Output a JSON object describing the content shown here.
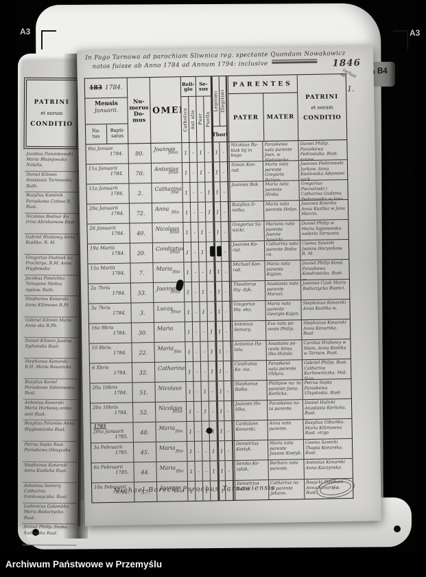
{
  "frame": {
    "mark_top_left": "A3",
    "mark_top_right": "A3",
    "mark_side_right": "B4",
    "footer": "Archiwum Państwowe w Przemyślu"
  },
  "colors": {
    "film": "#e9e9e6",
    "paper": "#d4d3cf",
    "ink": "#35322b",
    "print": "#17140e"
  },
  "left_page": {
    "header_l1": "PATRINI",
    "header_l2": "et eorum",
    "header_l3": "CONDITIO",
    "entries": [
      "Jacobus Dziombowski Maria Błażejowska Natelis.",
      "Daniel Kilimin Anastasia Tarnowska Ruth.",
      "Bazylius Kotelnik Paraskewa Cotiwa R. Rust.",
      "Nicolaus Bodnar Ko Irina Abrahamow Rust.",
      "Gabriel Hrabowy Anna Kozlika. R. M.",
      "Gregorius Dudziak ko Prochirya. R.M. Anna Węgłowska",
      "Jacobus Potelchka Tamojana Stolica nyslaw. Ruth.",
      "Stephanus Konarski Anna Kilimowa R.Pf.",
      "Gabriel Kilimin Maria Anna ska R.Ph.",
      "Daniel Kilimin Justina Sydomska Rust.",
      "Stephanus Konarski R.H. Maria Basoricka",
      "Bazylius Koriel Paraskewa Sidorowska Rust.",
      "Antonius Konarski Maria Horbowy ambo soni Rust.",
      "Bazylius Palumbo Anna Węgłowianka Rust.",
      "Petrus Supta Rust. Paraskewa Olesyczka",
      "Stephanus Konarski Anna Kozlicka Rust.",
      "Antonius Semary Catharina Irankowyczka. Rust.",
      "Ludovicus Golambko Maria Badurzycka. Rust.",
      "Daniel Philip. Fenka Sadowska Rust."
    ]
  },
  "page": {
    "title_line1": "In Pago Tarnawa ad parochiam Sliwnica reg. spectante Quondam Nowakowicz",
    "title_line2": "natos fuisse ab Anno 1784 ad Annum 1794: inclusive",
    "year_note": "1846",
    "margin_note": "inclusi\nve.",
    "page_number": "1.",
    "signature": "Michael Borecki Parochus Tarnawiensis.",
    "stamp_text": "· 5 0 ·",
    "header": {
      "year_printed": "183",
      "year_hand": "1784.",
      "mensis": "Mensis",
      "mensis_hand": "Januarii.",
      "natus": "Na-\ntus",
      "baptisatus": "Bapti-\nsatus",
      "numerus": "Nu-\nmerus\nDo-\nmus",
      "nomen": "NOMEN",
      "religio": "Reli-\ngio",
      "catholica": "Catholica",
      "aut_alia": "Aut alia",
      "sexus": "Se-\nxus",
      "puer": "Puer",
      "puella": "Puella",
      "legitimi": "Legitimi",
      "illegitimi": "Illegitimi",
      "thori": "Thori",
      "parentes": "PARENTES",
      "pater": "PATER",
      "mater": "MATER",
      "patrini_l1": "PATRINI",
      "patrini_l2": "et eorum",
      "patrini_l3": "CONDITIO"
    },
    "rows": [
      {
        "date": "6ta Januar.",
        "year": "1784.",
        "domus": "80.",
        "name": "Joannes",
        "suffix": "filius",
        "marks": [
          "1",
          "-",
          "1",
          "-",
          "1",
          "-"
        ],
        "pater": "Nicolaus Ba- biak kij in bago",
        "mater": "Paraskewa nata parente Joan. w Nielwiecka",
        "patrini": "Daniel Philip. Paraskewa Fedrosiuka. Rust. sanow"
      },
      {
        "date": "11a Januarii",
        "year": "1784.",
        "domus": "70.",
        "name": "Antonius",
        "suffix": "filius",
        "marks": [
          "1",
          "-",
          "1",
          "-",
          "1",
          "-"
        ],
        "pater": "Simon Kon- rad.",
        "mater": "Maria nata parente Gregorio Bajzow.",
        "patrini": "Joannes Fedorowski Jurkow. Anna Kozlowska Adamowi sack."
      },
      {
        "date": "11a Januarii",
        "year": "1784.",
        "domus": "2.",
        "name": "Catharina",
        "suffix": "filia",
        "marks": [
          "1",
          "-",
          "-",
          "1",
          "1",
          "-"
        ],
        "pater": "Joannes Bak.",
        "mater": "Maria nata parente Hinko.",
        "patrini": "Gregorius Pierozinski i Catharina Gudzina Fedorowska w Jana."
      },
      {
        "date": "20a Januarii",
        "year": "1784.",
        "domus": "72.",
        "name": "Anna",
        "suffix": "filia",
        "marks": [
          "1",
          "-",
          "-",
          "1",
          "1",
          "-"
        ],
        "pater": "Bazylius D- mitko.",
        "mater": "Maria nata parente Holyn.",
        "patrini": "Joannes Kosinko Anna Kozlika w Jana Marcin."
      },
      {
        "date": "26 Januarii",
        "year": "1784.",
        "domus": "40.",
        "name": "Nicolaus",
        "suffix": "filius",
        "marks": [
          "1",
          "-",
          "1",
          "-",
          "1",
          "-"
        ],
        "pater": "Gregorius Sa- wicki.",
        "mater": "Mariana nata parente Joanne Sawicki.",
        "patrini": "Daniel Philip w Maria Sojonowska walerio Tarnawia."
      },
      {
        "date": "19a Martii",
        "year": "1784.",
        "domus": "20.",
        "name": "Condratus",
        "suffix": "filius",
        "marks": [
          "1",
          "-",
          "1",
          "-",
          "1",
          "-"
        ],
        "pater": "Joannes Ko- rial.",
        "mater": "Catharina nata parente Boiko ca.",
        "patrini": "Cosma Sawicki Joanna Horyszkow. R. M."
      },
      {
        "date": "15a Martii",
        "year": "1784.",
        "domus": "7.",
        "name": "Maria",
        "suffix": "filia",
        "marks": [
          "1",
          "-",
          "-",
          "1",
          "1",
          "-"
        ],
        "pater": "Michael Kon- rad.",
        "mater": "Maria nata parente Kajzon.",
        "patrini": "Daniel Philip Kond. Paraskewa Kondrasicka. Rust. —"
      },
      {
        "date": "2a 7bris",
        "year": "1784.",
        "domus": "53.",
        "name": "Joannes",
        "suffix": "filius",
        "marks": [
          "1",
          "-",
          "1",
          "-",
          "1",
          "-"
        ],
        "pater": "Theodorus Sty- dyk.",
        "mater": "Anastasia nata parente Maruci.",
        "patrini": "Joannes Cauk Maria Badurzycka Rustici."
      },
      {
        "date": "3a 7bris",
        "year": "1784.",
        "domus": "3.",
        "name": "Lucas",
        "suffix": "filius",
        "marks": [
          "1",
          "-",
          "1",
          "-",
          "1",
          "-"
        ],
        "pater": "Gregorius Ma- eka.",
        "mater": "Maria nata parente Georgio Kajan.",
        "patrini": "Stephanus Konarski Anna Kozlika w."
      },
      {
        "date": "16a 9bris",
        "year": "1784.",
        "domus": "30.",
        "name": "Maria",
        "suffix": "",
        "marks": [
          "1",
          "-",
          "-",
          "1",
          "1",
          "-"
        ],
        "pater": "Antonius Semary.",
        "mater": "Eva nata pa- rente Philip.",
        "patrini": "Stephanus Konarski Anna Konarska. Rust."
      },
      {
        "date": "10 8bris",
        "year": "1784.",
        "domus": "22.",
        "name": "Maria",
        "suffix": "filia",
        "marks": [
          "1",
          "-",
          "-",
          "1",
          "1",
          "-"
        ],
        "pater": "Antonius Ha- lata.",
        "mater": "Anastasia pa- rente Simo. Ilko Hutala.",
        "patrini": "Carolus Hrabowy w Niem. Anna Kozlika w Tarnaw. Rust."
      },
      {
        "date": "6 Xbris",
        "year": "1784.",
        "domus": "32.",
        "name": "Catharina",
        "suffix": "",
        "marks": [
          "1",
          "-",
          "-",
          "1",
          "1",
          "-"
        ],
        "pater": "Condratus Ko- zia.",
        "mater": "Paraskewi nata parente Oldyca.",
        "patrini": "Gabriel Philip. Rust. Catharina Kurhowniczka. Mal. Sian."
      },
      {
        "date": "20a 10bris",
        "year": "1784.",
        "domus": "51.",
        "name": "Nicolaus",
        "suffix": "",
        "marks": [
          "1",
          "-",
          "1",
          "-",
          "1",
          "-"
        ],
        "pater": "Stephanus Balko.",
        "mater": "Philipow na- ta parente jiana. Korlicka.",
        "patrini": "Petrus Supta Paraskewa Ulzysinska. Rust."
      },
      {
        "date": "20a 10bris",
        "year": "1784.",
        "domus": "52.",
        "name": "Nicolaus",
        "suffix": "filius",
        "marks": [
          "1",
          "-",
          "1",
          "-",
          "1",
          "-"
        ],
        "pater": "Joannes Ho- lilka.",
        "mater": "Paraskewa na- ta parente.",
        "patrini": "Daniel Hulicki Anastasia Korlicka. Rust."
      },
      {
        "year_header": "1785",
        "date": "26ta Januarii",
        "year": "1785.",
        "domus": "48.",
        "name": "Maria",
        "suffix": "filia",
        "marks": [
          "1",
          "-",
          "-",
          "1",
          "1",
          "-"
        ],
        "pater": "Cardulaon Konarski.",
        "mater": "Anna nata parente.",
        "patrini": "Bazylius Giburtko. Maria Kilimowna Rust. virgo"
      },
      {
        "date": "3a Februarii",
        "year": "1785.",
        "domus": "45.",
        "name": "Maria",
        "suffix": "filia",
        "marks": [
          "1",
          "-",
          "-",
          "1",
          "1",
          "-"
        ],
        "pater": "Demetrius Kostyk.",
        "mater": "Maria nata parente Joanne Kostyk.",
        "patrini": "Cosma Sawicki Thopia Konarska. Rust."
      },
      {
        "date": "6a Februarii",
        "year": "1785.",
        "domus": "44.",
        "name": "Maria",
        "suffix": "filia",
        "marks": [
          "1",
          "-",
          "-",
          "1",
          "1",
          "-"
        ],
        "pater": "Semko Ko- zylak.",
        "mater": "Barbara nata parente.",
        "patrini": "Antonius Konarski Anna Kaczynska."
      },
      {
        "date": "10a Februarii",
        "year": "1785.",
        "domus": "57.",
        "name": "Joannes",
        "suffix": "filius",
        "marks": [
          "1",
          "-",
          "1",
          "-",
          "1",
          "-"
        ],
        "pater": "Demetrius Balko.",
        "mater": "Catharina na- ta parente Johann.",
        "patrini": "Rozycki Stephani Anna Konarska. Rust."
      }
    ]
  }
}
